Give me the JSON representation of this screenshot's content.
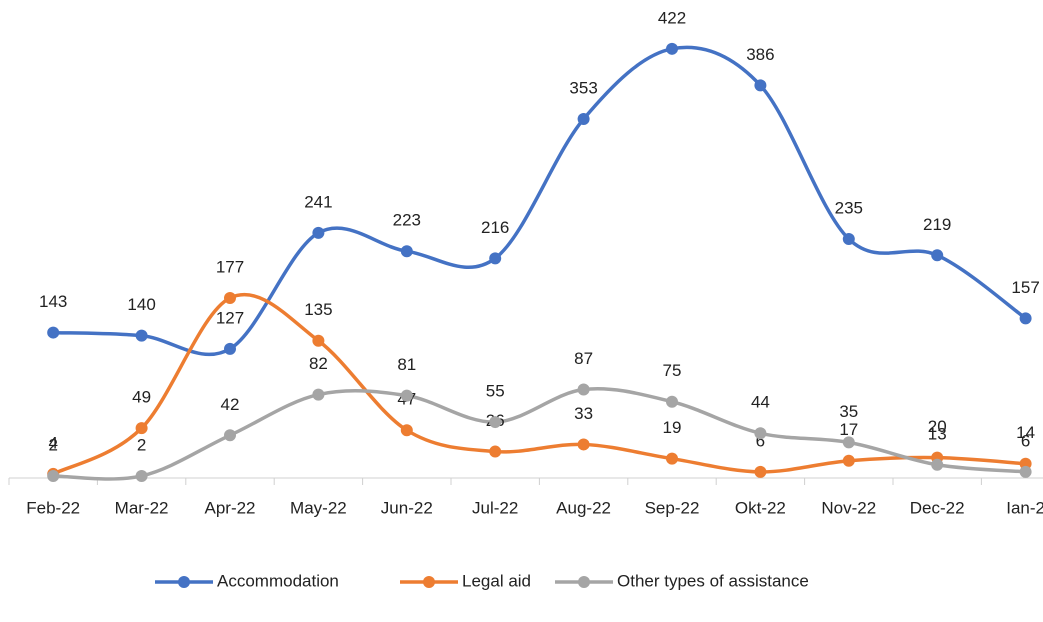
{
  "chart_data": {
    "type": "line",
    "categories": [
      "Feb-22",
      "Mar-22",
      "Apr-22",
      "May-22",
      "Jun-22",
      "Jul-22",
      "Aug-22",
      "Sep-22",
      "Okt-22",
      "Nov-22",
      "Dec-22",
      "Ian-2"
    ],
    "series": [
      {
        "name": "Accommodation",
        "color": "#4472c4",
        "values": [
          143,
          140,
          127,
          241,
          223,
          216,
          353,
          422,
          386,
          235,
          219,
          157
        ]
      },
      {
        "name": "Legal aid",
        "color": "#ed7d31",
        "values": [
          4,
          49,
          177,
          135,
          47,
          26,
          33,
          19,
          6,
          17,
          20,
          14
        ]
      },
      {
        "name": "Other types of assistance",
        "color": "#a5a5a5",
        "values": [
          2,
          2,
          42,
          82,
          81,
          55,
          87,
          75,
          44,
          35,
          13,
          6
        ]
      }
    ],
    "ylim": [
      0,
      470
    ],
    "smooth": true,
    "legend": "bottom"
  }
}
